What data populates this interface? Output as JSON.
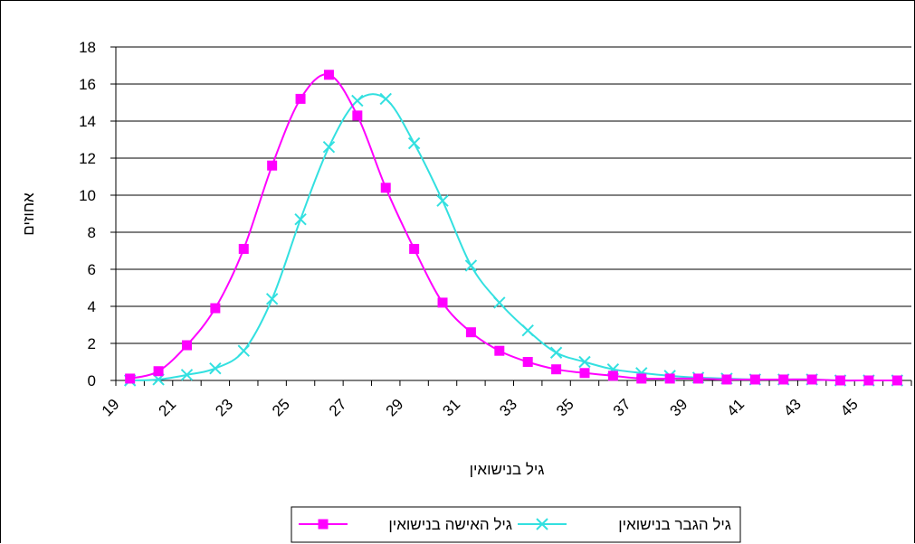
{
  "chart_data": {
    "type": "line",
    "title": "",
    "xlabel": "גיל בנישואין",
    "ylabel": "אחוזים",
    "xlim": [
      19,
      47
    ],
    "ylim": [
      0,
      18
    ],
    "y_ticks": [
      0,
      2,
      4,
      6,
      8,
      10,
      12,
      14,
      16,
      18
    ],
    "x_ticks": [
      19,
      21,
      23,
      25,
      27,
      29,
      31,
      33,
      35,
      37,
      39,
      41,
      43,
      45
    ],
    "grid": "horizontal",
    "legend_position": "bottom",
    "series": [
      {
        "name": "גיל האישה בנישואין",
        "color": "#ff00ff",
        "marker": "square",
        "x": [
          19.5,
          20.5,
          21.5,
          22.5,
          23.5,
          24.5,
          25.5,
          26.5,
          27.5,
          28.5,
          29.5,
          30.5,
          31.5,
          32.5,
          33.5,
          34.5,
          35.5,
          36.5,
          37.5,
          38.5,
          39.5,
          40.5,
          41.5,
          42.5,
          43.5,
          44.5,
          45.5,
          46.5
        ],
        "y": [
          0.1,
          0.5,
          1.9,
          3.9,
          7.1,
          11.6,
          15.2,
          16.5,
          14.3,
          10.4,
          7.1,
          4.2,
          2.6,
          1.6,
          1.0,
          0.6,
          0.4,
          0.25,
          0.1,
          0.1,
          0.1,
          0.05,
          0.05,
          0.05,
          0.05,
          0.0,
          0.0,
          0.0
        ]
      },
      {
        "name": "גיל הגבר בנישואין",
        "color": "#33e0e0",
        "marker": "x",
        "x": [
          19.5,
          20.5,
          21.5,
          22.5,
          23.5,
          24.5,
          25.5,
          26.5,
          27.5,
          28.5,
          29.5,
          30.5,
          31.5,
          32.5,
          33.5,
          34.5,
          35.5,
          36.5,
          37.5,
          38.5,
          39.5,
          40.5,
          41.5,
          42.5,
          43.5,
          44.5,
          45.5,
          46.5
        ],
        "y": [
          0.0,
          0.05,
          0.3,
          0.65,
          1.6,
          4.4,
          8.7,
          12.6,
          15.1,
          15.2,
          12.8,
          9.7,
          6.2,
          4.2,
          2.7,
          1.5,
          1.0,
          0.6,
          0.4,
          0.25,
          0.15,
          0.1,
          0.05,
          0.05,
          0.05,
          0.0,
          0.0,
          0.0
        ]
      }
    ]
  }
}
